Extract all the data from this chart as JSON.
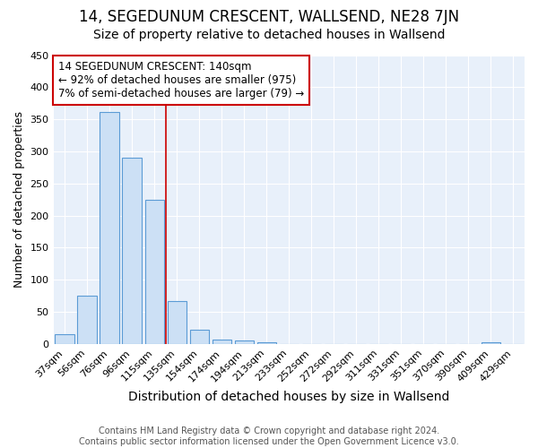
{
  "title": "14, SEGEDUNUM CRESCENT, WALLSEND, NE28 7JN",
  "subtitle": "Size of property relative to detached houses in Wallsend",
  "xlabel": "Distribution of detached houses by size in Wallsend",
  "ylabel": "Number of detached properties",
  "categories": [
    "37sqm",
    "56sqm",
    "76sqm",
    "96sqm",
    "115sqm",
    "135sqm",
    "154sqm",
    "174sqm",
    "194sqm",
    "213sqm",
    "233sqm",
    "252sqm",
    "272sqm",
    "292sqm",
    "311sqm",
    "331sqm",
    "351sqm",
    "370sqm",
    "390sqm",
    "409sqm",
    "429sqm"
  ],
  "values": [
    15,
    75,
    362,
    290,
    225,
    67,
    22,
    7,
    5,
    3,
    0,
    0,
    0,
    0,
    0,
    0,
    0,
    0,
    0,
    2,
    0
  ],
  "bar_color": "#cce0f5",
  "bar_edge_color": "#5b9bd5",
  "red_line_x": 4.5,
  "annotation_text": "14 SEGEDUNUM CRESCENT: 140sqm\n← 92% of detached houses are smaller (975)\n7% of semi-detached houses are larger (79) →",
  "annotation_box_facecolor": "white",
  "annotation_box_edgecolor": "#cc0000",
  "ylim": [
    0,
    450
  ],
  "yticks": [
    0,
    50,
    100,
    150,
    200,
    250,
    300,
    350,
    400,
    450
  ],
  "footnote": "Contains HM Land Registry data © Crown copyright and database right 2024.\nContains public sector information licensed under the Open Government Licence v3.0.",
  "title_fontsize": 12,
  "subtitle_fontsize": 10,
  "xlabel_fontsize": 10,
  "ylabel_fontsize": 9,
  "tick_fontsize": 8,
  "annotation_fontsize": 8.5,
  "footnote_fontsize": 7,
  "fig_facecolor": "#ffffff",
  "ax_facecolor": "#e8f0fa",
  "grid_color": "#ffffff"
}
